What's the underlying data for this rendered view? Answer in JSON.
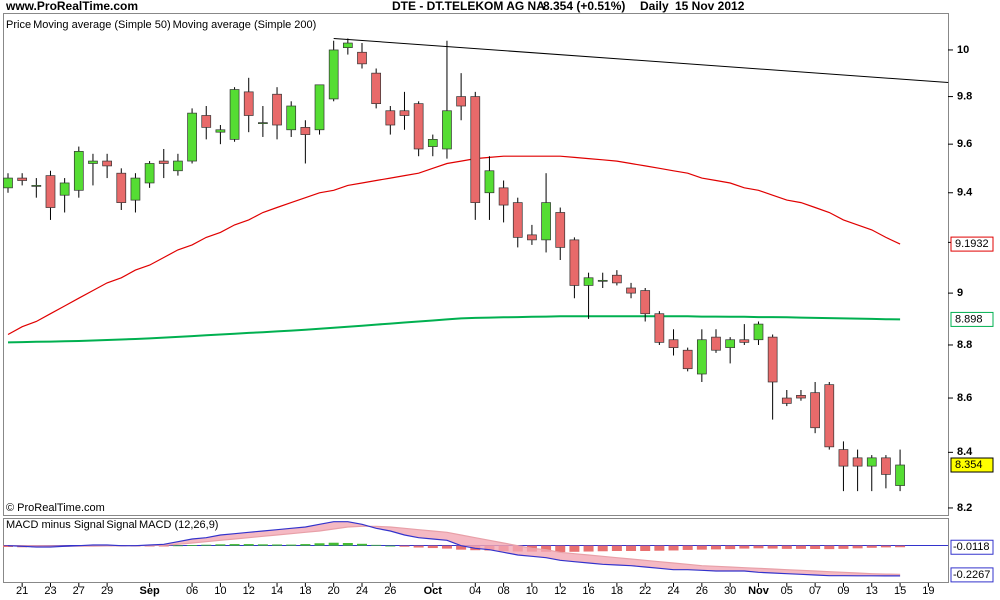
{
  "header": {
    "source": "www.ProRealTime.com",
    "title": "DTE - DT.TELEKOM AG NA",
    "last": "8.354 (+0.51%)",
    "period": "Daily",
    "date": "15 Nov 2012"
  },
  "footer": {
    "copyright": "© ProRealTime.com"
  },
  "chart_data": {
    "type": "candlestick",
    "log_scale": true,
    "categories": [
      null,
      "21",
      null,
      "23",
      null,
      "27",
      null,
      "29",
      null,
      null,
      "Sep",
      null,
      null,
      "06",
      null,
      "10",
      null,
      "12",
      null,
      "14",
      null,
      "18",
      null,
      "20",
      null,
      "24",
      null,
      "26",
      null,
      null,
      "Oct",
      null,
      null,
      "04",
      null,
      "08",
      null,
      "10",
      null,
      "12",
      null,
      "16",
      null,
      "18",
      null,
      "22",
      null,
      "24",
      null,
      "26",
      null,
      "30",
      null,
      "Nov",
      null,
      "05",
      null,
      "07",
      null,
      "09",
      null,
      "13",
      null,
      "15",
      null,
      "19"
    ],
    "ylim": [
      8.175,
      10.157
    ],
    "yticks": [
      8.2,
      8.4,
      8.6,
      8.8,
      9,
      9.2,
      9.4,
      9.6,
      9.8,
      10
    ],
    "series": [
      {
        "name": "Price",
        "up_color": "#55dd33",
        "down_color": "#e86a6a",
        "label_color": "#ffff00",
        "last_label": "8.354",
        "open": [
          9.42,
          9.46,
          9.43,
          9.47,
          9.39,
          9.41,
          9.52,
          9.53,
          9.48,
          9.37,
          9.44,
          9.53,
          9.49,
          9.53,
          9.72,
          9.65,
          9.62,
          9.82,
          9.69,
          9.81,
          9.66,
          9.67,
          9.66,
          9.79,
          10.01,
          9.99,
          9.9,
          9.74,
          9.74,
          9.77,
          9.59,
          9.58,
          9.8,
          9.8,
          9.4,
          9.42,
          9.36,
          9.23,
          9.21,
          9.32,
          9.21,
          9.03,
          9.05,
          9.07,
          9.02,
          9.01,
          8.92,
          8.82,
          8.78,
          8.69,
          8.83,
          8.79,
          8.82,
          8.82,
          8.83,
          8.6,
          8.61,
          8.62,
          8.65,
          8.41,
          8.38,
          8.35,
          8.38,
          8.28,
          null,
          null
        ],
        "high": [
          9.48,
          9.48,
          9.46,
          9.49,
          9.46,
          9.59,
          9.56,
          9.56,
          9.5,
          9.48,
          9.53,
          9.58,
          9.56,
          9.75,
          9.76,
          9.68,
          9.84,
          9.88,
          9.76,
          9.84,
          9.78,
          9.7,
          9.85,
          10.04,
          10.05,
          10.03,
          9.92,
          9.76,
          9.82,
          9.78,
          9.64,
          10.04,
          9.9,
          9.82,
          9.55,
          9.45,
          9.38,
          9.27,
          9.48,
          9.34,
          9.22,
          9.08,
          9.08,
          9.09,
          9.04,
          9.02,
          8.93,
          8.86,
          8.79,
          8.86,
          8.86,
          8.83,
          8.88,
          8.89,
          8.84,
          8.63,
          8.63,
          8.66,
          8.66,
          8.44,
          8.41,
          8.39,
          8.39,
          8.41,
          null,
          null
        ],
        "low": [
          9.4,
          9.43,
          9.38,
          9.29,
          9.32,
          9.38,
          9.43,
          9.46,
          9.33,
          9.32,
          9.42,
          9.46,
          9.47,
          9.52,
          9.62,
          9.6,
          9.61,
          9.65,
          9.63,
          9.62,
          9.63,
          9.52,
          9.64,
          9.78,
          9.98,
          9.92,
          9.75,
          9.64,
          9.66,
          9.55,
          9.55,
          9.54,
          9.7,
          9.29,
          9.29,
          9.28,
          9.18,
          9.19,
          9.16,
          9.13,
          8.98,
          8.9,
          9.02,
          9.03,
          8.98,
          8.89,
          8.8,
          8.76,
          8.7,
          8.66,
          8.77,
          8.73,
          8.8,
          8.8,
          8.52,
          8.57,
          8.59,
          8.47,
          8.41,
          8.26,
          8.26,
          8.26,
          8.27,
          8.26,
          null,
          null
        ],
        "close": [
          9.46,
          9.45,
          9.43,
          9.34,
          9.44,
          9.57,
          9.53,
          9.51,
          9.36,
          9.46,
          9.52,
          9.52,
          9.53,
          9.73,
          9.67,
          9.66,
          9.83,
          9.72,
          9.69,
          9.68,
          9.76,
          9.64,
          9.85,
          10.0,
          10.03,
          9.94,
          9.77,
          9.68,
          9.72,
          9.58,
          9.62,
          9.74,
          9.76,
          9.36,
          9.49,
          9.35,
          9.22,
          9.21,
          9.36,
          9.18,
          9.03,
          9.06,
          9.05,
          9.04,
          9.0,
          8.92,
          8.81,
          8.79,
          8.71,
          8.82,
          8.78,
          8.82,
          8.81,
          8.88,
          8.66,
          8.58,
          8.6,
          8.49,
          8.42,
          8.35,
          8.35,
          8.38,
          8.32,
          8.354,
          null,
          null
        ]
      },
      {
        "name": "Moving average (Simple 50)",
        "color": "#e00000",
        "last_label": "9.1932",
        "values": [
          8.84,
          8.87,
          8.89,
          8.92,
          8.95,
          8.98,
          9.01,
          9.04,
          9.06,
          9.09,
          9.11,
          9.14,
          9.17,
          9.19,
          9.22,
          9.24,
          9.27,
          9.29,
          9.32,
          9.34,
          9.36,
          9.38,
          9.4,
          9.41,
          9.43,
          9.44,
          9.45,
          9.46,
          9.47,
          9.48,
          9.5,
          9.52,
          9.53,
          9.54,
          9.545,
          9.55,
          9.55,
          9.55,
          9.55,
          9.55,
          9.545,
          9.54,
          9.535,
          9.53,
          9.52,
          9.51,
          9.5,
          9.49,
          9.48,
          9.46,
          9.45,
          9.44,
          9.42,
          9.41,
          9.39,
          9.37,
          9.36,
          9.34,
          9.32,
          9.29,
          9.27,
          9.25,
          9.22,
          9.1932,
          null,
          null
        ]
      },
      {
        "name": "Moving average (Simple 200)",
        "color": "#00b050",
        "last_label": "8.898",
        "values": [
          8.81,
          8.811,
          8.812,
          8.813,
          8.814,
          8.815,
          8.817,
          8.819,
          8.821,
          8.823,
          8.825,
          8.828,
          8.831,
          8.834,
          8.837,
          8.84,
          8.843,
          8.846,
          8.849,
          8.852,
          8.855,
          8.858,
          8.862,
          8.866,
          8.87,
          8.874,
          8.878,
          8.882,
          8.886,
          8.89,
          8.894,
          8.898,
          8.902,
          8.904,
          8.905,
          8.906,
          8.907,
          8.908,
          8.909,
          8.91,
          8.91,
          8.91,
          8.91,
          8.91,
          8.91,
          8.91,
          8.91,
          8.91,
          8.91,
          8.909,
          8.909,
          8.908,
          8.908,
          8.907,
          8.907,
          8.906,
          8.905,
          8.904,
          8.903,
          8.902,
          8.901,
          8.9,
          8.899,
          8.898,
          null,
          null
        ]
      }
    ],
    "trendline": {
      "x": [
        23,
        66.4
      ],
      "y": [
        10.05,
        9.86
      ],
      "color": "#000000"
    },
    "macd": {
      "ylim": [
        -0.28,
        0.2
      ],
      "series": [
        {
          "name": "MACD minus Signal",
          "color": "#e87070",
          "positive_color": "#44bb33",
          "last_label": "-0.0118",
          "values": [
            -0.01,
            -0.012,
            -0.012,
            -0.01,
            -0.008,
            -0.005,
            -0.003,
            -0.004,
            -0.006,
            -0.005,
            -0.003,
            -0.002,
            0.002,
            0.005,
            0.007,
            0.01,
            0.012,
            0.012,
            0.01,
            0.009,
            0.008,
            0.012,
            0.018,
            0.022,
            0.02,
            0.014,
            0.006,
            0.0,
            -0.008,
            -0.014,
            -0.018,
            -0.022,
            -0.03,
            -0.034,
            -0.036,
            -0.04,
            -0.044,
            -0.045,
            -0.046,
            -0.048,
            -0.046,
            -0.044,
            -0.042,
            -0.04,
            -0.04,
            -0.04,
            -0.038,
            -0.036,
            -0.032,
            -0.03,
            -0.028,
            -0.026,
            -0.022,
            -0.02,
            -0.022,
            -0.024,
            -0.024,
            -0.025,
            -0.026,
            -0.024,
            -0.02,
            -0.016,
            -0.013,
            -0.0118,
            null,
            null
          ]
        },
        {
          "name": "Signal",
          "color": "#e8a0a8",
          "values": [
            0,
            0,
            0,
            -0.002,
            -0.004,
            -0.004,
            -0.003,
            -0.002,
            -0.001,
            0,
            0.001,
            0.003,
            0.01,
            0.02,
            0.03,
            0.04,
            0.05,
            0.06,
            0.07,
            0.08,
            0.09,
            0.1,
            0.11,
            0.125,
            0.14,
            0.145,
            0.145,
            0.14,
            0.13,
            0.12,
            0.11,
            0.1,
            0.08,
            0.06,
            0.04,
            0.02,
            0.0,
            -0.02,
            -0.03,
            -0.05,
            -0.06,
            -0.07,
            -0.08,
            -0.09,
            -0.1,
            -0.11,
            -0.12,
            -0.13,
            -0.14,
            -0.15,
            -0.155,
            -0.16,
            -0.165,
            -0.17,
            -0.175,
            -0.18,
            -0.185,
            -0.19,
            -0.195,
            -0.2,
            -0.205,
            -0.21,
            -0.213,
            -0.215,
            null,
            null
          ]
        },
        {
          "name": "MACD (12,26,9)",
          "color": "#3333cc",
          "last_label": "-0.2267",
          "values": [
            0.0,
            -0.005,
            -0.01,
            -0.01,
            -0.005,
            0.0,
            0.005,
            0.005,
            0.0,
            0.0,
            0.005,
            0.01,
            0.03,
            0.05,
            0.06,
            0.08,
            0.09,
            0.1,
            0.11,
            0.12,
            0.13,
            0.14,
            0.16,
            0.18,
            0.18,
            0.16,
            0.13,
            0.11,
            0.08,
            0.06,
            0.05,
            0.04,
            0.0,
            -0.02,
            -0.03,
            -0.05,
            -0.07,
            -0.08,
            -0.09,
            -0.11,
            -0.12,
            -0.13,
            -0.14,
            -0.145,
            -0.15,
            -0.16,
            -0.17,
            -0.18,
            -0.18,
            -0.185,
            -0.19,
            -0.19,
            -0.19,
            -0.2,
            -0.205,
            -0.21,
            -0.215,
            -0.22,
            -0.225,
            -0.225,
            -0.226,
            -0.226,
            -0.2265,
            -0.2267,
            null,
            null
          ]
        }
      ]
    }
  }
}
